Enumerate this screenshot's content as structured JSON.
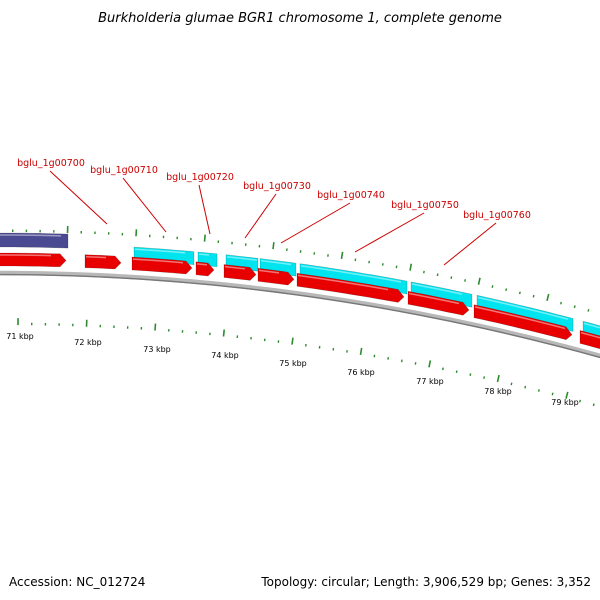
{
  "title": "Burkholderia glumae BGR1 chromosome 1, complete genome",
  "colors": {
    "label": "#cc0000",
    "leader": "#cc0000",
    "tick": "#2e8b2e",
    "forward_gene": "#00e4f0",
    "reverse_gene": "#e80000",
    "other_feature": "#4a4a92",
    "backbone": "#888888"
  },
  "gene_labels": [
    "bglu_1g00700",
    "bglu_1g00710",
    "bglu_1g00720",
    "bglu_1g00730",
    "bglu_1g00740",
    "bglu_1g00750",
    "bglu_1g00760"
  ],
  "tick_labels": [
    "71 kbp",
    "72 kbp",
    "73 kbp",
    "74 kbp",
    "75 kbp",
    "76 kbp",
    "77 kbp",
    "78 kbp",
    "79 kbp"
  ],
  "footer": {
    "accession": "Accession: NC_012724",
    "summary": "Topology: circular; Length: 3,906,529 bp; Genes: 3,352"
  }
}
